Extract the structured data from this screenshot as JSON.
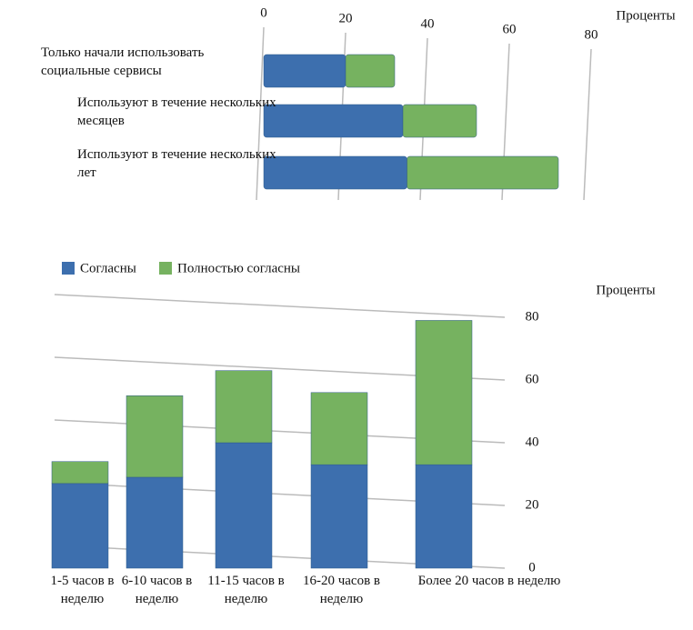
{
  "chart_data": [
    {
      "type": "hbar-stacked",
      "axis_label": "Проценты",
      "categories": [
        "Только начали использовать социальные сервисы",
        "Используют в течение нескольких месяцев",
        "Используют в течение нескольких лет"
      ],
      "series": [
        {
          "name": "Согласны",
          "color": "#3d6fae",
          "values": [
            20,
            34,
            35
          ]
        },
        {
          "name": "Полностью согласны",
          "color": "#76b260",
          "values": [
            12,
            18,
            37
          ]
        }
      ],
      "xlim": [
        0,
        80
      ],
      "xticks": [
        0,
        20,
        40,
        60,
        80
      ],
      "grid": true
    },
    {
      "type": "bar-stacked",
      "axis_label": "Проценты",
      "categories": [
        "1-5 часов в неделю",
        "6-10 часов в неделю",
        "11-15 часов в неделю",
        "16-20 часов в неделю",
        "Более 20 часов в неделю"
      ],
      "series": [
        {
          "name": "Согласны",
          "color": "#3d6fae",
          "values": [
            27,
            29,
            40,
            33,
            33
          ]
        },
        {
          "name": "Полностью согласны",
          "color": "#76b260",
          "values": [
            7,
            26,
            23,
            23,
            46
          ]
        }
      ],
      "ylim": [
        0,
        80
      ],
      "yticks": [
        0,
        20,
        40,
        60,
        80
      ],
      "grid": true,
      "legend": "top"
    }
  ]
}
